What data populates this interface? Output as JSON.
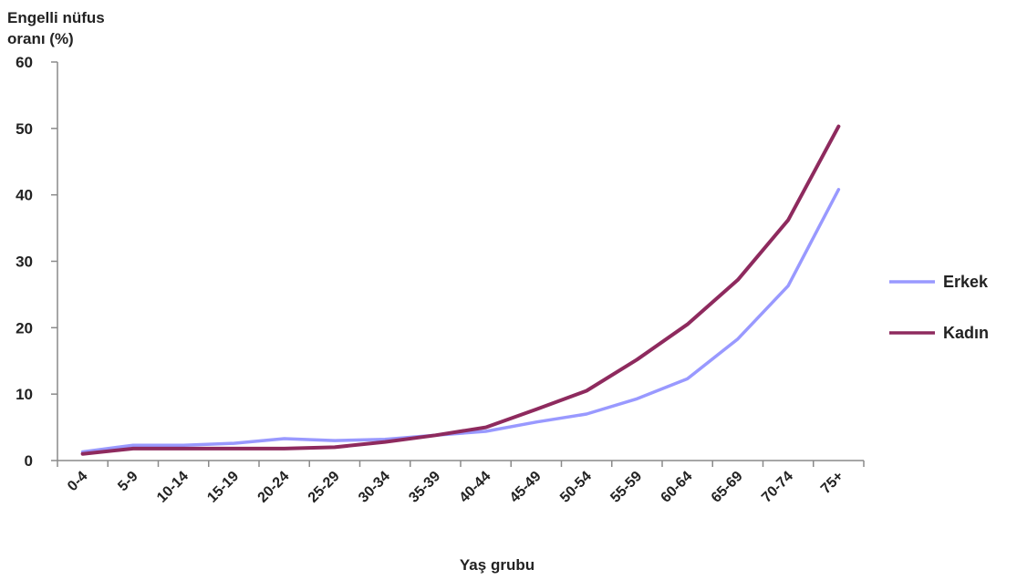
{
  "chart_data": {
    "type": "line",
    "ylabel_lines": [
      "Engelli nüfus",
      "oranı (%)"
    ],
    "xlabel": "Yaş grubu",
    "categories": [
      "0-4",
      "5-9",
      "10-14",
      "15-19",
      "20-24",
      "25-29",
      "30-34",
      "35-39",
      "40-44",
      "45-49",
      "50-54",
      "55-59",
      "60-64",
      "65-69",
      "70-74",
      "75+"
    ],
    "ylim": [
      0,
      60
    ],
    "yticks": [
      0,
      10,
      20,
      30,
      40,
      50,
      60
    ],
    "grid": false,
    "legend_position": "right",
    "series": [
      {
        "name": "Erkek",
        "color": "#9999ff",
        "values": [
          1.3,
          2.3,
          2.3,
          2.6,
          3.3,
          3.0,
          3.2,
          3.8,
          4.4,
          5.8,
          7.0,
          9.3,
          12.3,
          18.3,
          26.3,
          40.8
        ]
      },
      {
        "name": "Kadın",
        "color": "#8e2a5e",
        "values": [
          1.0,
          1.8,
          1.8,
          1.8,
          1.8,
          2.0,
          2.8,
          3.8,
          5.0,
          7.7,
          10.5,
          15.2,
          20.5,
          27.2,
          36.2,
          50.3
        ]
      }
    ]
  }
}
